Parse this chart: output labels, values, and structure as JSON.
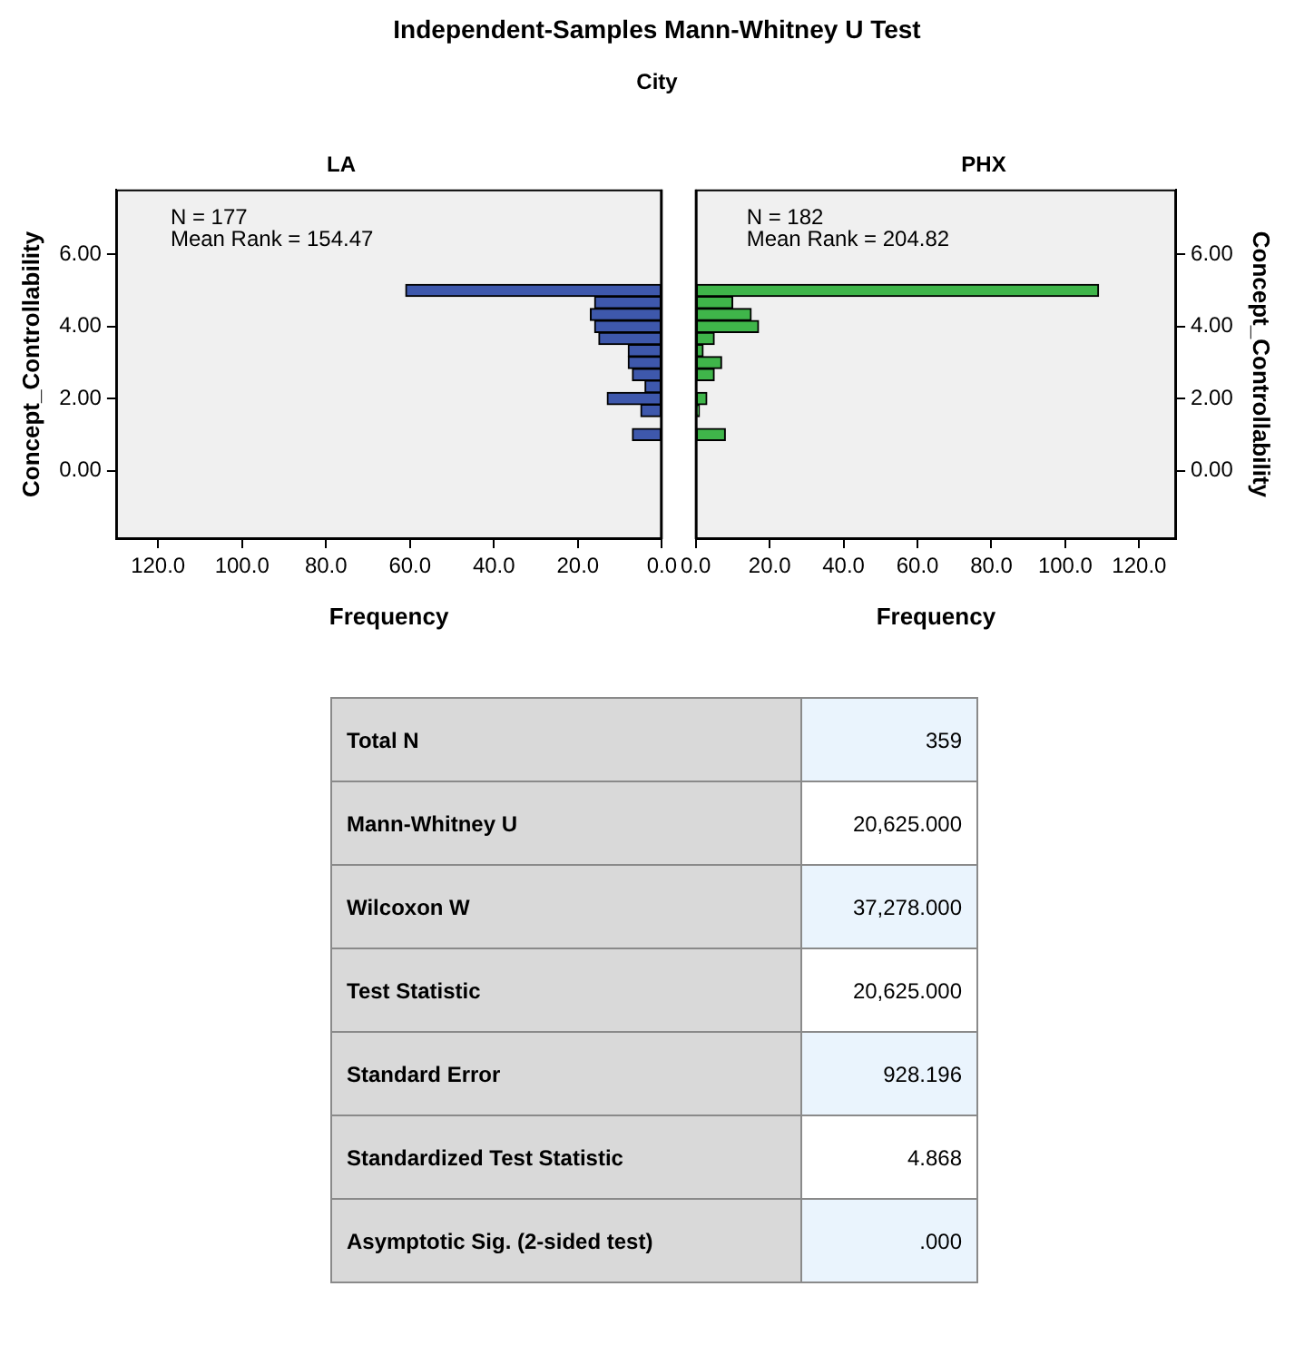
{
  "chart_data": [
    {
      "type": "other",
      "title": "Independent-Samples Mann-Whitney U Test",
      "subtitle": "City"
    },
    {
      "type": "histogram",
      "orientation": "horizontal",
      "title": "LA",
      "xlabel": "Frequency",
      "ylabel": "Concept_Controllability",
      "bins": [
        0.833,
        1.167,
        1.5,
        1.833,
        2.167,
        2.5,
        2.833,
        3.167,
        3.5,
        3.833,
        4.167,
        4.5,
        4.833,
        5.167
      ],
      "values": [
        7,
        0,
        5,
        13,
        4,
        7,
        8,
        8,
        15,
        16,
        17,
        16,
        61
      ],
      "color": "#3e58ac",
      "xlim": [
        130,
        0
      ],
      "xticks": [
        {
          "value": 120,
          "label": "120.0"
        },
        {
          "value": 100,
          "label": "100.0"
        },
        {
          "value": 80,
          "label": "80.0"
        },
        {
          "value": 60,
          "label": "60.0"
        },
        {
          "value": 40,
          "label": "40.0"
        },
        {
          "value": 20,
          "label": "20.0"
        },
        {
          "value": 0,
          "label": "0.0"
        }
      ],
      "ylim": [
        -1.9,
        7.8
      ],
      "yticks": [
        {
          "value": 0,
          "label": "0.00"
        },
        {
          "value": 2,
          "label": "2.00"
        },
        {
          "value": 4,
          "label": "4.00"
        },
        {
          "value": 6,
          "label": "6.00"
        }
      ],
      "grid": false,
      "annotations": [
        "N = 177",
        "Mean Rank = 154.47"
      ]
    },
    {
      "type": "histogram",
      "orientation": "horizontal",
      "title": "PHX",
      "xlabel": "Frequency",
      "ylabel": "Concept_Controllability",
      "bins": [
        0.833,
        1.167,
        1.5,
        1.833,
        2.167,
        2.5,
        2.833,
        3.167,
        3.5,
        3.833,
        4.167,
        4.5,
        4.833,
        5.167
      ],
      "values": [
        8,
        0,
        1,
        3,
        0,
        5,
        7,
        2,
        5,
        17,
        15,
        10,
        109
      ],
      "color": "#3fb54a",
      "xlim": [
        0,
        130
      ],
      "xticks": [
        {
          "value": 0,
          "label": "0.0"
        },
        {
          "value": 20,
          "label": "20.0"
        },
        {
          "value": 40,
          "label": "40.0"
        },
        {
          "value": 60,
          "label": "60.0"
        },
        {
          "value": 80,
          "label": "80.0"
        },
        {
          "value": 100,
          "label": "100.0"
        },
        {
          "value": 120,
          "label": "120.0"
        }
      ],
      "ylim": [
        -1.9,
        7.8
      ],
      "yticks": [
        {
          "value": 0,
          "label": "0.00"
        },
        {
          "value": 2,
          "label": "2.00"
        },
        {
          "value": 4,
          "label": "4.00"
        },
        {
          "value": 6,
          "label": "6.00"
        }
      ],
      "grid": false,
      "annotations": [
        "N = 182",
        "Mean Rank = 204.82"
      ]
    },
    {
      "type": "other",
      "categories": [
        "Total N",
        "Mann-Whitney U",
        "Wilcoxon W",
        "Test Statistic",
        "Standard Error",
        "Standardized Test Statistic",
        "Asymptotic Sig. (2-sided test)"
      ],
      "annotations": [
        "359",
        "20,625.000",
        "37,278.000",
        "20,625.000",
        "928.196",
        "4.868",
        ".000"
      ]
    }
  ]
}
